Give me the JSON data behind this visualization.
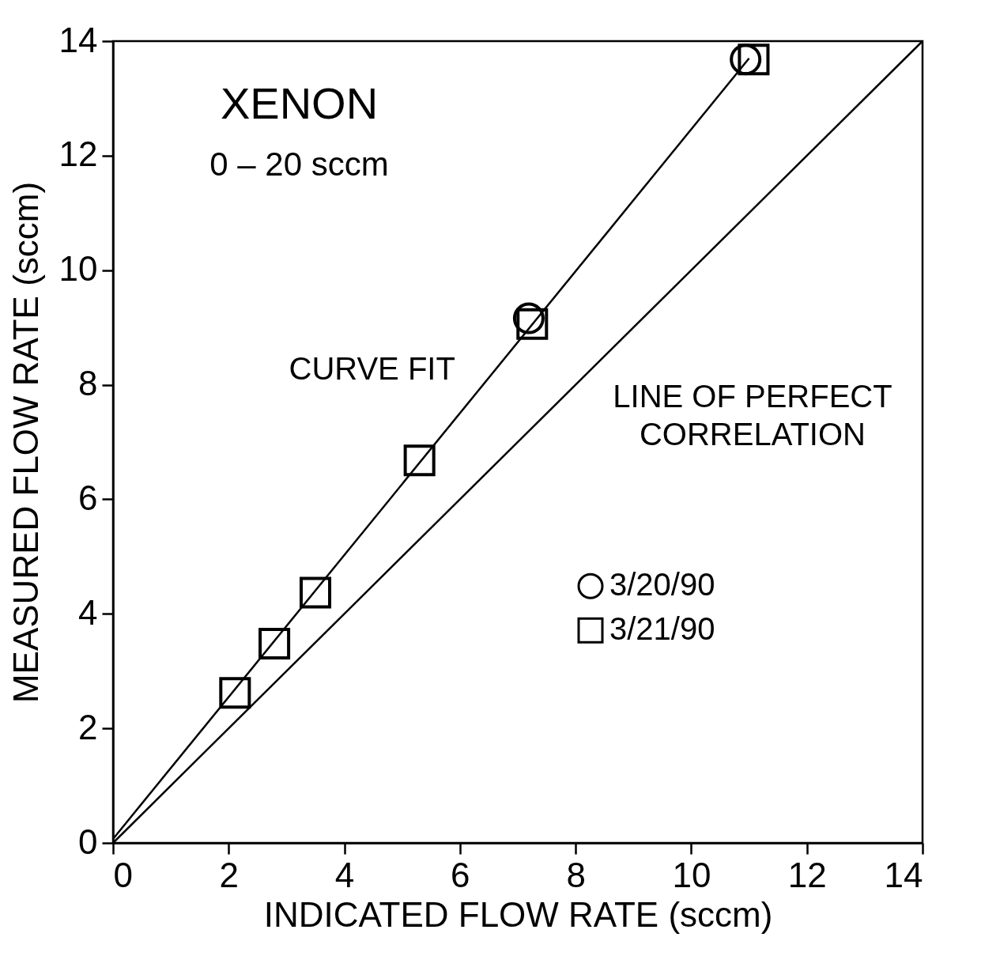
{
  "chart_data": {
    "type": "scatter",
    "title": "XENON",
    "subtitle": "0 – 20 sccm",
    "xlabel": "INDICATED FLOW RATE  (sccm)",
    "ylabel": "MEASURED FLOW RATE  (sccm)",
    "series": [
      {
        "name": "3/20/90",
        "marker": "circle",
        "color": "#000000",
        "x": [
          7.19,
          10.94
        ],
        "values": [
          9.16,
          13.68
        ]
      },
      {
        "name": "3/21/90",
        "marker": "square",
        "color": "#000000",
        "x": [
          2.11,
          2.79,
          3.5,
          5.3,
          7.25,
          11.08
        ],
        "values": [
          2.62,
          3.48,
          4.37,
          6.68,
          9.06,
          13.68
        ]
      },
      {
        "type": "line",
        "color": "#000000",
        "x": [
          0,
          11
        ],
        "values": [
          0.07,
          13.7
        ]
      },
      {
        "type": "line",
        "color": "#000000",
        "x": [
          0,
          14
        ],
        "values": [
          0,
          14
        ]
      }
    ],
    "annotations": [
      "CURVE FIT",
      "LINE OF PERFECT CORRELATION"
    ],
    "xlim": [
      0,
      14
    ],
    "ylim": [
      0,
      14
    ],
    "xticks": [
      0,
      2,
      4,
      6,
      8,
      10,
      12,
      14
    ],
    "yticks": [
      0,
      2,
      4,
      6,
      8,
      10,
      12,
      14
    ],
    "grid": false,
    "legend": "right"
  }
}
